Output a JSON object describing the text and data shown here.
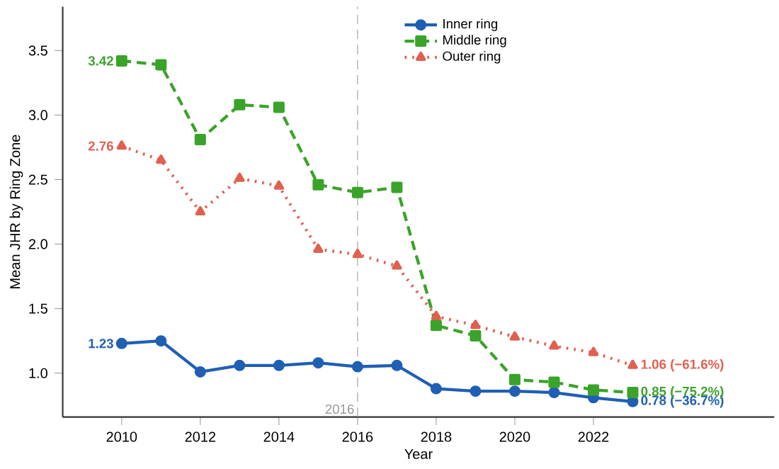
{
  "chart_data": {
    "type": "line",
    "xlabel": "Year",
    "ylabel": "Mean JHR by Ring Zone",
    "x": [
      2010,
      2011,
      2012,
      2013,
      2014,
      2015,
      2016,
      2017,
      2018,
      2019,
      2020,
      2021,
      2022,
      2023
    ],
    "series": [
      {
        "name": "Inner ring",
        "color": "#1f5fb4",
        "marker": "circle",
        "line_style": "solid",
        "values": [
          1.23,
          1.25,
          1.01,
          1.06,
          1.06,
          1.08,
          1.05,
          1.06,
          0.88,
          0.86,
          0.86,
          0.85,
          0.81,
          0.78
        ],
        "value_labels": [
          "1.23",
          null,
          null,
          null,
          null,
          null,
          null,
          null,
          null,
          null,
          null,
          null,
          null,
          "0.78 (−36.7%)"
        ]
      },
      {
        "name": "Middle ring",
        "color": "#3aa329",
        "marker": "square",
        "line_style": "dashed",
        "values": [
          3.42,
          3.39,
          2.81,
          3.08,
          3.06,
          2.46,
          2.4,
          2.44,
          1.37,
          1.29,
          0.95,
          0.93,
          0.87,
          0.85
        ],
        "value_labels": [
          "3.42",
          null,
          null,
          null,
          null,
          null,
          null,
          null,
          null,
          null,
          null,
          null,
          null,
          "0.85 (−75.2%)"
        ]
      },
      {
        "name": "Outer ring",
        "color": "#e06050",
        "marker": "triangle",
        "line_style": "dotted",
        "values": [
          2.76,
          2.65,
          2.25,
          2.51,
          2.45,
          1.96,
          1.92,
          1.83,
          1.44,
          1.37,
          1.28,
          1.21,
          1.16,
          1.06
        ],
        "value_labels": [
          "2.76",
          null,
          null,
          null,
          null,
          null,
          null,
          null,
          null,
          null,
          null,
          null,
          null,
          "1.06 (−61.6%)"
        ]
      }
    ],
    "xlim": [
      2008.5,
      2026.6
    ],
    "ylim": [
      0.66,
      3.84
    ],
    "xticks": [
      2010,
      2012,
      2014,
      2016,
      2018,
      2020,
      2022
    ],
    "yticks": [
      {
        "value": 1,
        "label": "1.0"
      },
      1.5,
      {
        "value": 2,
        "label": "2.0"
      },
      2.5,
      {
        "value": 3,
        "label": "3.0"
      },
      3.5
    ],
    "ref_lines": [
      {
        "axis": "x",
        "value": 2016,
        "label": "2016",
        "color": "#999999",
        "line_style": "dashed"
      }
    ],
    "grid": false,
    "legend": "top right"
  }
}
